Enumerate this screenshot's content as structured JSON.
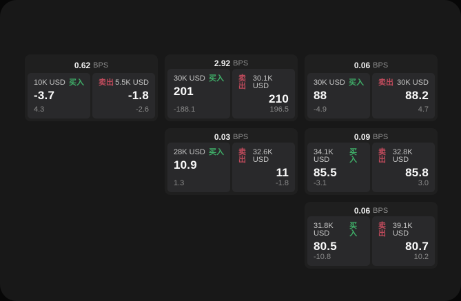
{
  "colors": {
    "background": "#070707",
    "surface": "#181818",
    "card_bg": "#1f1f1f",
    "tile_bg": "#29292b",
    "buy_green": "#3fae68",
    "sell_red": "#c04b5c"
  },
  "cards": [
    {
      "row": 1,
      "col": 1,
      "bps_value": "0.62",
      "bps_unit": "BPS",
      "buy": {
        "amount": "10K USD",
        "side": "买入",
        "price": "-3.7",
        "change": "4.3"
      },
      "sell": {
        "side": "卖出",
        "amount": "5.5K USD",
        "price": "-1.8",
        "change": "-2.6"
      }
    },
    {
      "row": 1,
      "col": 2,
      "bps_value": "2.92",
      "bps_unit": "BPS",
      "buy": {
        "amount": "30K USD",
        "side": "买入",
        "price": "201",
        "change": "-188.1"
      },
      "sell": {
        "side": "卖出",
        "amount": "30.1K USD",
        "price": "210",
        "change": "196.5"
      }
    },
    {
      "row": 1,
      "col": 3,
      "bps_value": "0.06",
      "bps_unit": "BPS",
      "buy": {
        "amount": "30K USD",
        "side": "买入",
        "price": "88",
        "change": "-4.9"
      },
      "sell": {
        "side": "卖出",
        "amount": "30K USD",
        "price": "88.2",
        "change": "4.7"
      }
    },
    {
      "row": 2,
      "col": 2,
      "bps_value": "0.03",
      "bps_unit": "BPS",
      "buy": {
        "amount": "28K USD",
        "side": "买入",
        "price": "10.9",
        "change": "1.3"
      },
      "sell": {
        "side": "卖出",
        "amount": "32.6K USD",
        "price": "11",
        "change": "-1.8"
      }
    },
    {
      "row": 2,
      "col": 3,
      "bps_value": "0.09",
      "bps_unit": "BPS",
      "buy": {
        "amount": "34.1K USD",
        "side": "买入",
        "price": "85.5",
        "change": "-3.1"
      },
      "sell": {
        "side": "卖出",
        "amount": "32.8K USD",
        "price": "85.8",
        "change": "3.0"
      }
    },
    {
      "row": 3,
      "col": 3,
      "bps_value": "0.06",
      "bps_unit": "BPS",
      "buy": {
        "amount": "31.8K USD",
        "side": "买入",
        "price": "80.5",
        "change": "-10.8"
      },
      "sell": {
        "side": "卖出",
        "amount": "39.1K USD",
        "price": "80.7",
        "change": "10.2"
      }
    }
  ]
}
